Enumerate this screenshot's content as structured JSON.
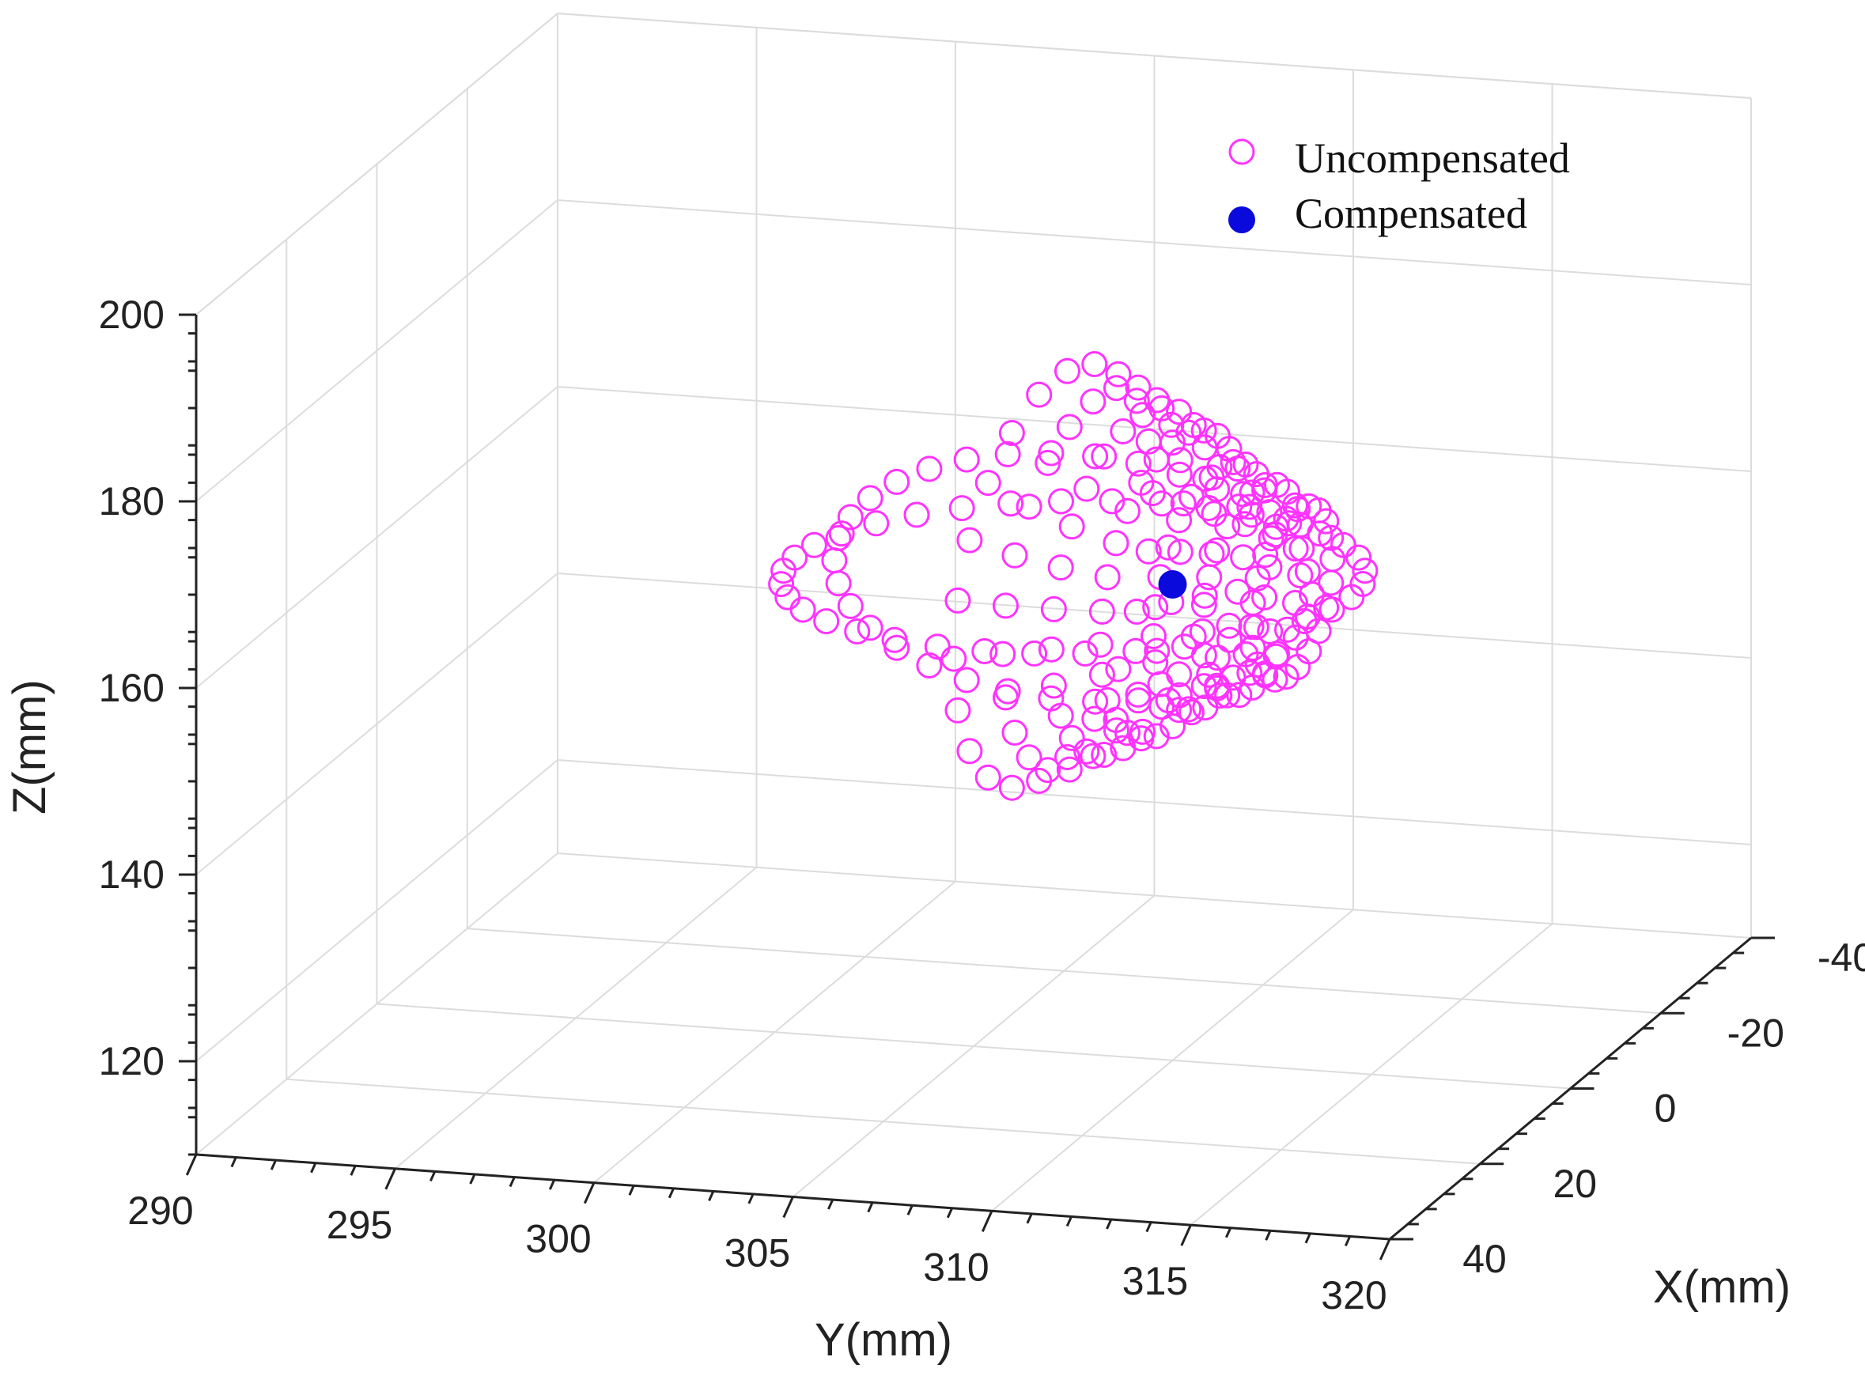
{
  "chart_data": {
    "type": "scatter",
    "title": "",
    "xlabel": "X(mm)",
    "ylabel": "Y(mm)",
    "zlabel": "Z(mm)",
    "xlim": [
      -40,
      40
    ],
    "ylim": [
      290,
      320
    ],
    "zlim": [
      110,
      200
    ],
    "x_ticks": [
      -40,
      -20,
      0,
      20,
      40
    ],
    "y_ticks": [
      290,
      295,
      300,
      305,
      310,
      315,
      320
    ],
    "z_ticks": [
      120,
      140,
      160,
      180,
      200
    ],
    "grid": true,
    "legend": "top-right",
    "series": [
      {
        "name": "Uncompensated",
        "marker": "open-circle",
        "color": "#ff33ff",
        "rings": [
          {
            "plane": "XZ",
            "center": [
              0,
              307,
              161
            ],
            "radius": 22,
            "count": 22
          },
          {
            "plane": "XZ",
            "center": [
              0,
              308,
              161
            ],
            "radius": 20,
            "count": 24
          },
          {
            "plane": "XZ",
            "center": [
              0,
              309,
              161
            ],
            "radius": 18,
            "count": 26
          },
          {
            "plane": "XZ",
            "center": [
              0,
              310,
              161
            ],
            "radius": 16,
            "count": 28
          },
          {
            "plane": "XZ",
            "center": [
              0,
              311,
              161
            ],
            "radius": 13,
            "count": 26
          },
          {
            "plane": "XZ",
            "center": [
              0,
              312,
              161
            ],
            "radius": 11,
            "count": 24
          },
          {
            "plane": "XZ",
            "center": [
              0,
              313,
              161
            ],
            "radius": 9,
            "count": 22
          },
          {
            "plane": "YZ",
            "center": [
              0,
              307.5,
              161
            ],
            "radius": 6,
            "count": 34
          },
          {
            "plane": "XY",
            "center": [
              0,
              307.5,
              161
            ],
            "radius": 7,
            "count": 36
          }
        ]
      },
      {
        "name": "Compensated",
        "marker": "filled-circle",
        "color": "#0a0adc",
        "points": [
          [
            0,
            310,
            161
          ]
        ]
      }
    ]
  }
}
